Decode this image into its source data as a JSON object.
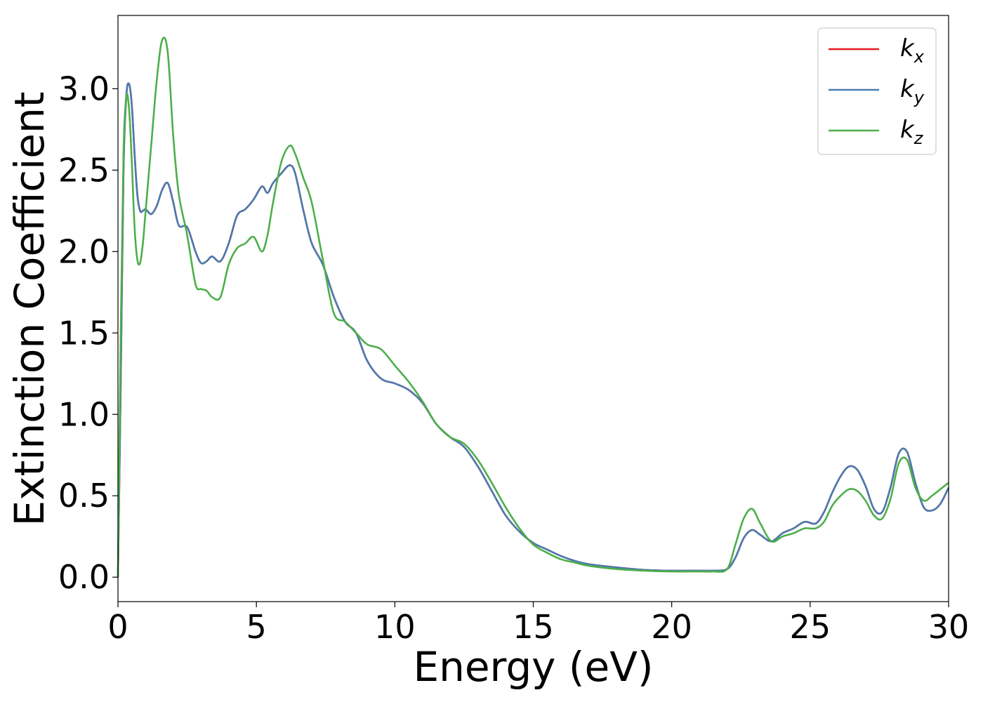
{
  "chart_data": {
    "type": "line",
    "title": "",
    "xlabel": "Energy (eV)",
    "ylabel": "Extinction Coefficient",
    "xlim": [
      0,
      30
    ],
    "ylim": [
      -0.15,
      3.45
    ],
    "xticks": [
      0,
      5,
      10,
      15,
      20,
      25,
      30
    ],
    "xtick_labels": [
      "0",
      "5",
      "10",
      "15",
      "20",
      "25",
      "30"
    ],
    "yticks": [
      0.0,
      0.5,
      1.0,
      1.5,
      2.0,
      2.5,
      3.0
    ],
    "ytick_labels": [
      "0.0",
      "0.5",
      "1.0",
      "1.5",
      "2.0",
      "2.5",
      "3.0"
    ],
    "grid": false,
    "legend_position": "top-right",
    "series": [
      {
        "name": "kx",
        "label_main": "k",
        "label_sub": "x",
        "color": "#e41a1c",
        "x": [
          0,
          0.1,
          0.2,
          0.3,
          0.4,
          0.5,
          0.6,
          0.7,
          0.8,
          0.9,
          1.0,
          1.2,
          1.4,
          1.6,
          1.8,
          2.0,
          2.2,
          2.5,
          2.8,
          3.0,
          3.2,
          3.4,
          3.7,
          4.0,
          4.3,
          4.6,
          4.9,
          5.2,
          5.4,
          5.6,
          5.9,
          6.2,
          6.4,
          6.7,
          7.0,
          7.4,
          7.8,
          8.2,
          8.6,
          9.0,
          9.5,
          10.0,
          10.5,
          11.0,
          11.5,
          12.0,
          12.5,
          13.0,
          13.5,
          14.0,
          14.5,
          15.0,
          15.5,
          16.0,
          16.5,
          17.0,
          18.0,
          19.0,
          20.0,
          21.0,
          21.5,
          22.0,
          22.3,
          22.6,
          22.9,
          23.2,
          23.6,
          24.0,
          24.4,
          24.8,
          25.2,
          25.5,
          25.8,
          26.1,
          26.4,
          26.7,
          27.0,
          27.3,
          27.6,
          27.9,
          28.2,
          28.5,
          28.8,
          29.1,
          29.4,
          29.7,
          30.0
        ],
        "y": [
          0.0,
          1.2,
          2.5,
          2.95,
          3.03,
          2.9,
          2.6,
          2.35,
          2.25,
          2.25,
          2.26,
          2.23,
          2.28,
          2.38,
          2.42,
          2.3,
          2.16,
          2.15,
          2.0,
          1.93,
          1.94,
          1.97,
          1.94,
          2.05,
          2.22,
          2.26,
          2.32,
          2.4,
          2.36,
          2.42,
          2.48,
          2.53,
          2.48,
          2.25,
          2.05,
          1.92,
          1.72,
          1.57,
          1.5,
          1.33,
          1.22,
          1.19,
          1.15,
          1.07,
          0.94,
          0.86,
          0.8,
          0.68,
          0.53,
          0.38,
          0.28,
          0.21,
          0.17,
          0.13,
          0.1,
          0.08,
          0.06,
          0.045,
          0.04,
          0.04,
          0.04,
          0.05,
          0.12,
          0.24,
          0.29,
          0.26,
          0.22,
          0.27,
          0.3,
          0.34,
          0.33,
          0.4,
          0.52,
          0.62,
          0.68,
          0.66,
          0.56,
          0.42,
          0.4,
          0.55,
          0.76,
          0.77,
          0.58,
          0.43,
          0.41,
          0.45,
          0.55
        ]
      },
      {
        "name": "ky",
        "label_main": "k",
        "label_sub": "y",
        "color": "#4b7bb0",
        "x": [
          0,
          0.1,
          0.2,
          0.3,
          0.4,
          0.5,
          0.6,
          0.7,
          0.8,
          0.9,
          1.0,
          1.2,
          1.4,
          1.6,
          1.8,
          2.0,
          2.2,
          2.5,
          2.8,
          3.0,
          3.2,
          3.4,
          3.7,
          4.0,
          4.3,
          4.6,
          4.9,
          5.2,
          5.4,
          5.6,
          5.9,
          6.2,
          6.4,
          6.7,
          7.0,
          7.4,
          7.8,
          8.2,
          8.6,
          9.0,
          9.5,
          10.0,
          10.5,
          11.0,
          11.5,
          12.0,
          12.5,
          13.0,
          13.5,
          14.0,
          14.5,
          15.0,
          15.5,
          16.0,
          16.5,
          17.0,
          18.0,
          19.0,
          20.0,
          21.0,
          21.5,
          22.0,
          22.3,
          22.6,
          22.9,
          23.2,
          23.6,
          24.0,
          24.4,
          24.8,
          25.2,
          25.5,
          25.8,
          26.1,
          26.4,
          26.7,
          27.0,
          27.3,
          27.6,
          27.9,
          28.2,
          28.5,
          28.8,
          29.1,
          29.4,
          29.7,
          30.0
        ],
        "y": [
          0.0,
          1.2,
          2.5,
          2.95,
          3.03,
          2.9,
          2.6,
          2.35,
          2.25,
          2.25,
          2.26,
          2.23,
          2.28,
          2.38,
          2.42,
          2.3,
          2.16,
          2.15,
          2.0,
          1.93,
          1.94,
          1.97,
          1.94,
          2.05,
          2.22,
          2.26,
          2.32,
          2.4,
          2.36,
          2.42,
          2.48,
          2.53,
          2.48,
          2.25,
          2.05,
          1.92,
          1.72,
          1.57,
          1.5,
          1.33,
          1.22,
          1.19,
          1.15,
          1.07,
          0.94,
          0.86,
          0.8,
          0.68,
          0.53,
          0.38,
          0.28,
          0.21,
          0.17,
          0.13,
          0.1,
          0.08,
          0.06,
          0.045,
          0.04,
          0.04,
          0.04,
          0.05,
          0.12,
          0.24,
          0.29,
          0.26,
          0.22,
          0.27,
          0.3,
          0.34,
          0.33,
          0.4,
          0.52,
          0.62,
          0.68,
          0.66,
          0.56,
          0.42,
          0.4,
          0.55,
          0.76,
          0.77,
          0.58,
          0.43,
          0.41,
          0.45,
          0.55
        ]
      },
      {
        "name": "kz",
        "label_main": "k",
        "label_sub": "z",
        "color": "#4daf4a",
        "x": [
          0,
          0.1,
          0.2,
          0.3,
          0.4,
          0.5,
          0.6,
          0.7,
          0.8,
          0.9,
          1.0,
          1.2,
          1.4,
          1.6,
          1.8,
          2.0,
          2.2,
          2.5,
          2.8,
          3.0,
          3.2,
          3.4,
          3.7,
          4.0,
          4.3,
          4.6,
          4.9,
          5.2,
          5.4,
          5.6,
          5.9,
          6.2,
          6.4,
          6.7,
          7.0,
          7.4,
          7.8,
          8.2,
          8.6,
          9.0,
          9.5,
          10.0,
          10.5,
          11.0,
          11.5,
          12.0,
          12.5,
          13.0,
          13.5,
          14.0,
          14.5,
          15.0,
          15.5,
          16.0,
          16.5,
          17.0,
          18.0,
          19.0,
          20.0,
          21.0,
          21.5,
          22.0,
          22.3,
          22.6,
          22.9,
          23.2,
          23.6,
          24.0,
          24.4,
          24.8,
          25.2,
          25.5,
          25.8,
          26.1,
          26.4,
          26.7,
          27.0,
          27.3,
          27.6,
          27.9,
          28.2,
          28.5,
          28.8,
          29.1,
          29.4,
          29.7,
          30.0
        ],
        "y": [
          0.0,
          1.5,
          2.6,
          2.95,
          2.88,
          2.55,
          2.15,
          1.95,
          1.93,
          2.05,
          2.25,
          2.65,
          3.05,
          3.3,
          3.22,
          2.7,
          2.35,
          2.1,
          1.8,
          1.77,
          1.76,
          1.72,
          1.72,
          1.92,
          2.02,
          2.05,
          2.09,
          2.0,
          2.1,
          2.3,
          2.55,
          2.65,
          2.6,
          2.45,
          2.3,
          1.95,
          1.62,
          1.57,
          1.5,
          1.43,
          1.4,
          1.3,
          1.2,
          1.08,
          0.94,
          0.86,
          0.82,
          0.72,
          0.58,
          0.43,
          0.3,
          0.2,
          0.15,
          0.11,
          0.09,
          0.07,
          0.05,
          0.04,
          0.035,
          0.035,
          0.035,
          0.05,
          0.2,
          0.36,
          0.42,
          0.33,
          0.22,
          0.25,
          0.27,
          0.3,
          0.3,
          0.34,
          0.44,
          0.5,
          0.54,
          0.53,
          0.47,
          0.38,
          0.36,
          0.48,
          0.7,
          0.72,
          0.55,
          0.47,
          0.5,
          0.54,
          0.58
        ]
      }
    ]
  }
}
